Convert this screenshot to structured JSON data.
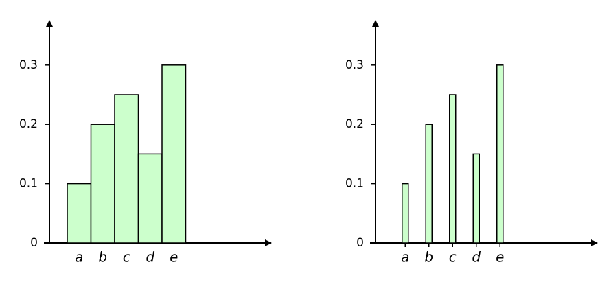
{
  "chart_data": [
    {
      "type": "bar",
      "categories": [
        "a",
        "b",
        "c",
        "d",
        "e"
      ],
      "values": [
        0.1,
        0.2,
        0.25,
        0.15,
        0.3
      ],
      "color": "#ccffcc",
      "ylim": [
        0,
        0.375
      ],
      "yticks": [
        0,
        0.1,
        0.2,
        0.3
      ]
    },
    {
      "type": "column",
      "categories": [
        "a",
        "b",
        "c",
        "d",
        "e"
      ],
      "values": [
        0.1,
        0.2,
        0.25,
        0.15,
        0.3
      ],
      "color": "#ccffcc",
      "ylim": [
        0,
        0.375
      ],
      "yticks": [
        0,
        0.1,
        0.2,
        0.3
      ]
    }
  ]
}
